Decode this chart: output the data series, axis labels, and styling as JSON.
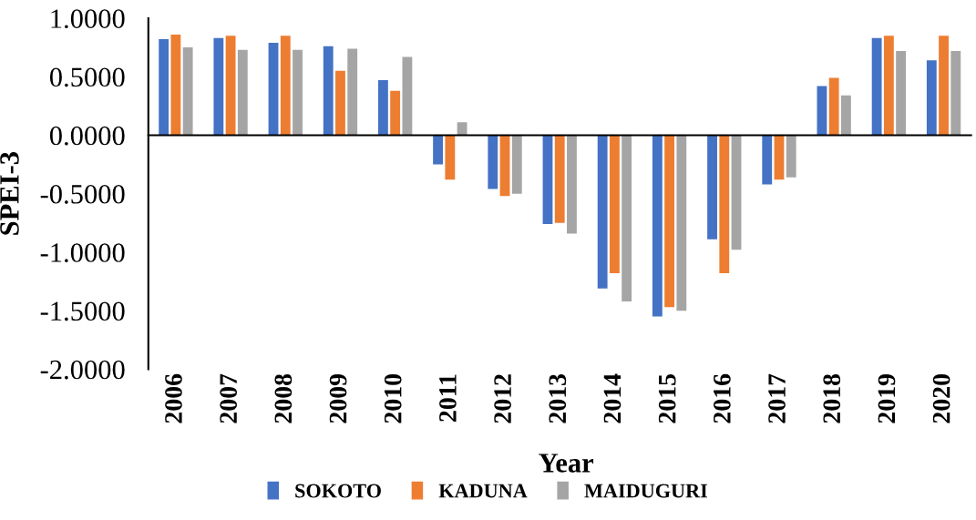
{
  "chart_data": {
    "type": "bar",
    "xlabel": "Year",
    "ylabel": "SPEI-3",
    "categories": [
      "2006",
      "2007",
      "2008",
      "2009",
      "2010",
      "2011",
      "2012",
      "2013",
      "2014",
      "2015",
      "2016",
      "2017",
      "2018",
      "2019",
      "2020"
    ],
    "series": [
      {
        "name": "SOKOTO",
        "color": "#4472c4",
        "values": [
          0.82,
          0.83,
          0.79,
          0.76,
          0.47,
          -0.25,
          -0.46,
          -0.76,
          -1.31,
          -1.55,
          -0.89,
          -0.42,
          0.42,
          0.83,
          0.64
        ]
      },
      {
        "name": "KADUNA",
        "color": "#ed7d31",
        "values": [
          0.86,
          0.85,
          0.85,
          0.55,
          0.38,
          -0.38,
          -0.52,
          -0.75,
          -1.18,
          -1.47,
          -1.18,
          -0.38,
          0.49,
          0.85,
          0.85
        ]
      },
      {
        "name": "MAIDUGURI",
        "color": "#a5a5a5",
        "values": [
          0.75,
          0.73,
          0.73,
          0.74,
          0.67,
          0.11,
          -0.5,
          -0.84,
          -1.42,
          -1.5,
          -0.98,
          -0.36,
          0.34,
          0.72,
          0.72
        ]
      }
    ],
    "ylim": [
      -2,
      1
    ],
    "yticks": [
      {
        "value": -2,
        "label": "-2.0000"
      },
      {
        "value": -1.5,
        "label": "-1.5000"
      },
      {
        "value": -1,
        "label": "-1.0000"
      },
      {
        "value": -0.5,
        "label": "-0.5000"
      },
      {
        "value": 0,
        "label": "0.0000"
      },
      {
        "value": 0.5,
        "label": "0.5000"
      },
      {
        "value": 1,
        "label": "1.0000"
      }
    ],
    "legend": "bottom"
  }
}
